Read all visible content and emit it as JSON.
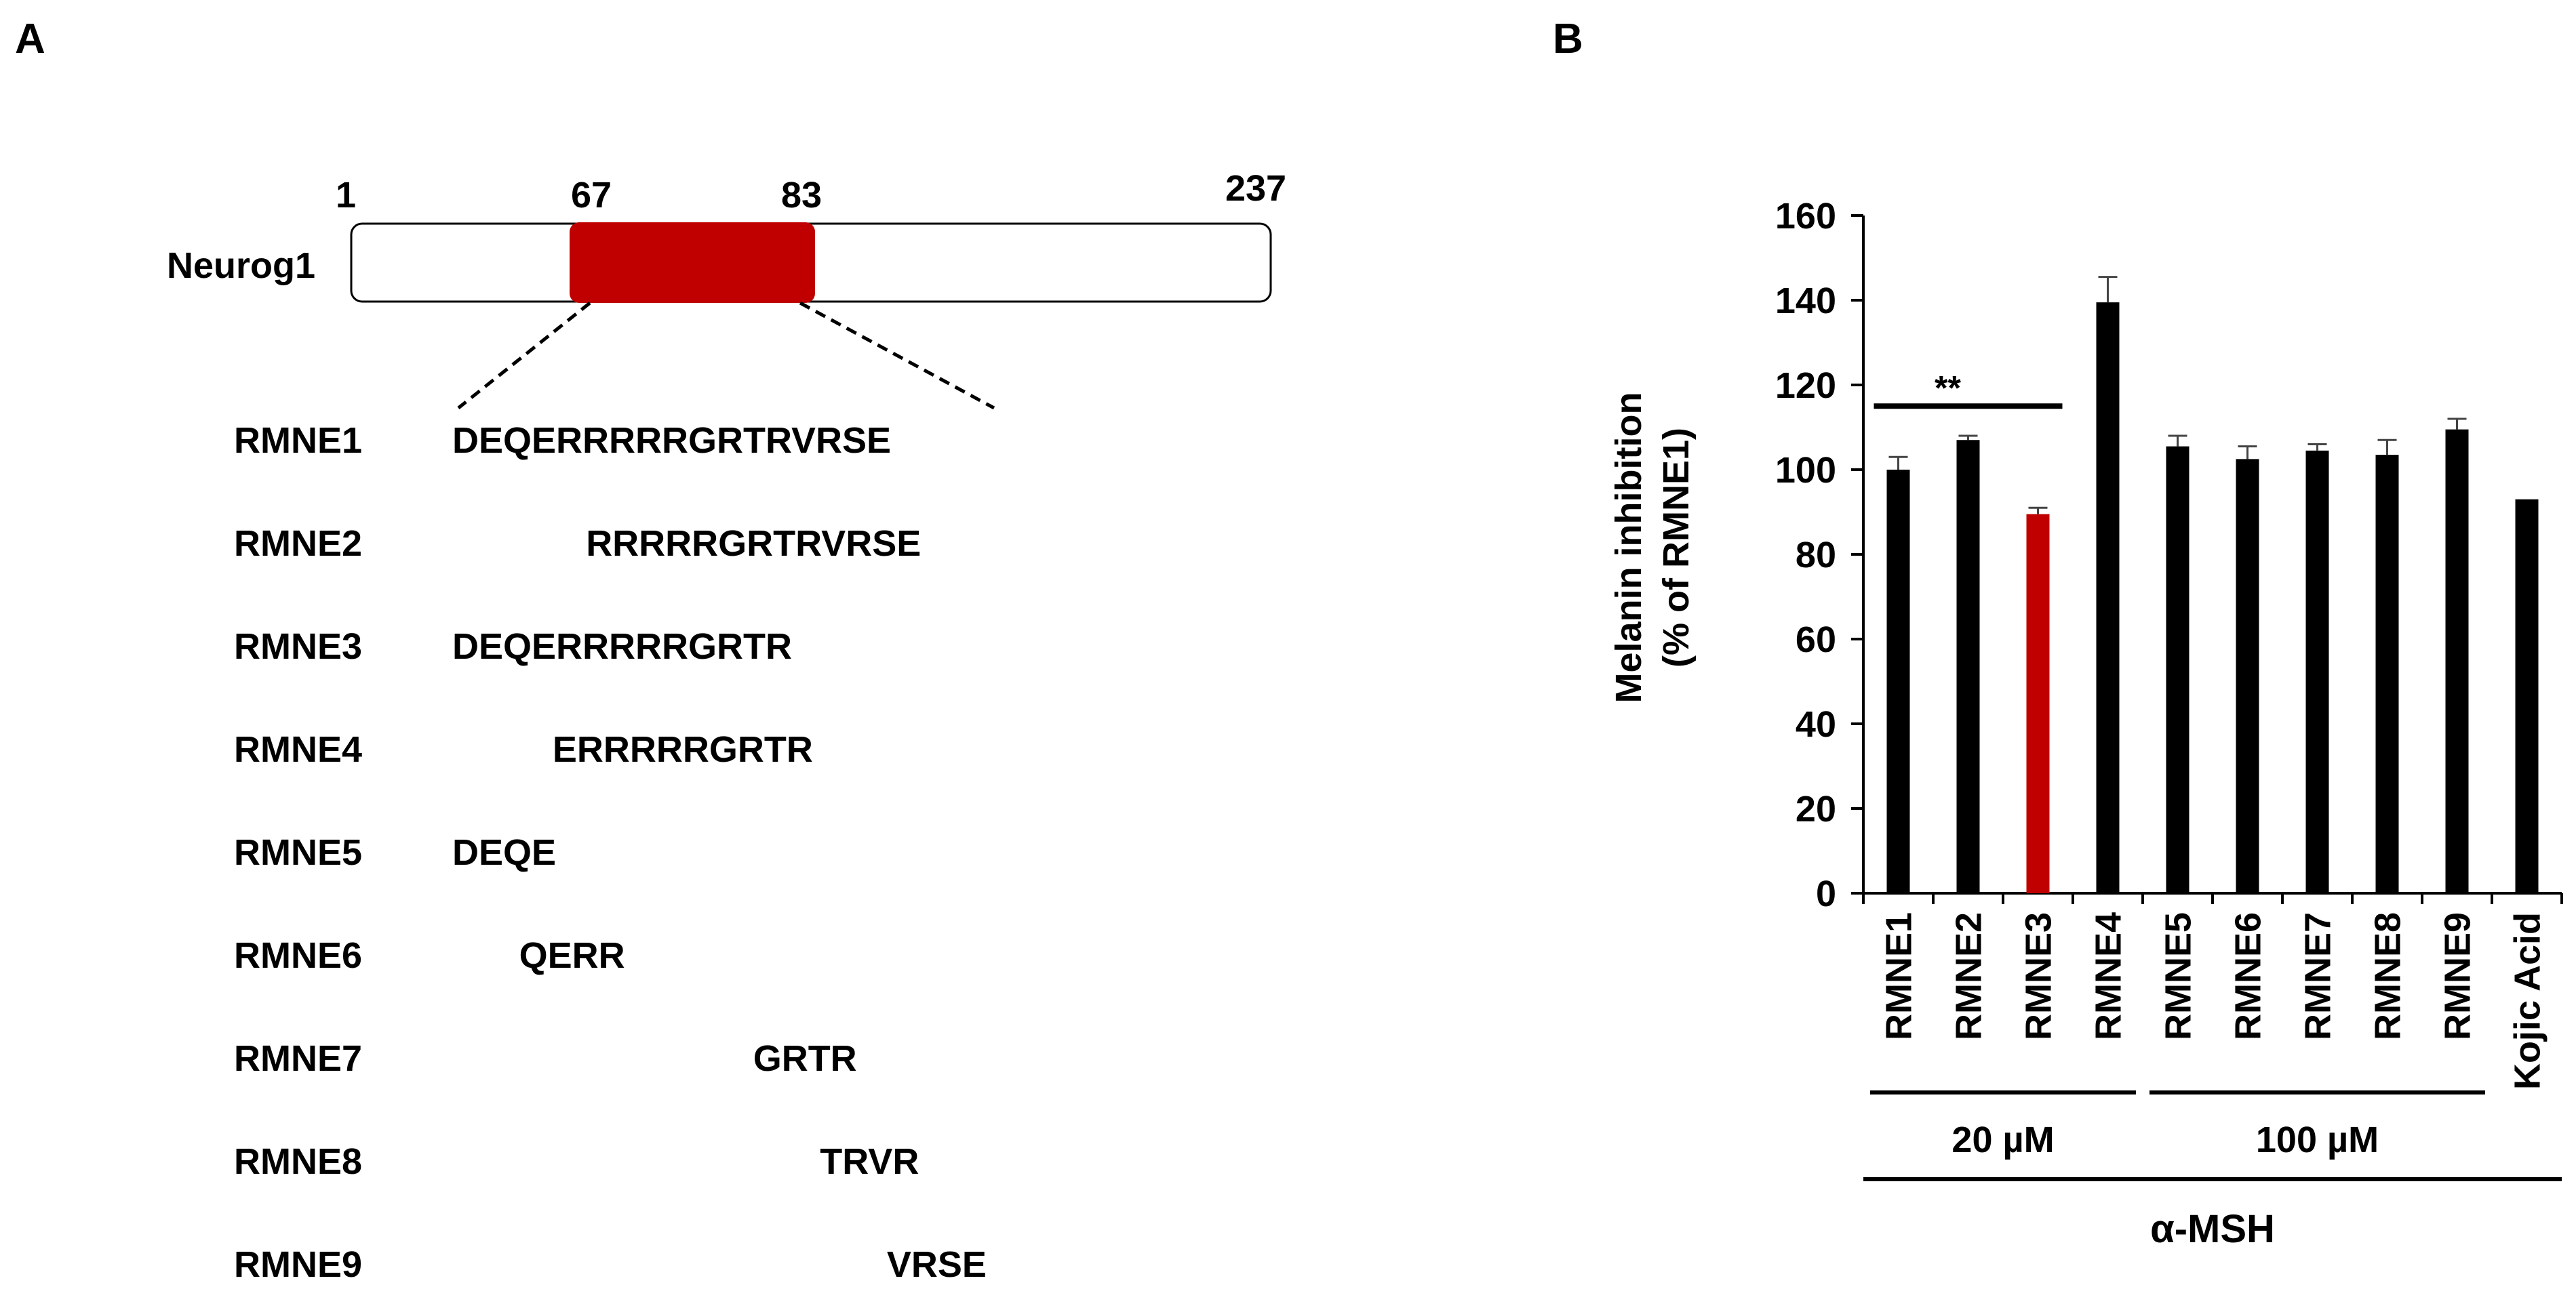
{
  "panel_a": {
    "label": "A",
    "protein_name": "Neurog1",
    "positions": [
      "1",
      "67",
      "83",
      "237"
    ],
    "domain_color": "#c00000",
    "peptides": [
      {
        "name": "RMNE1",
        "sequence": "DEQERRRRRGRTRVRSE",
        "start": 0,
        "highlight": false
      },
      {
        "name": "RMNE2",
        "sequence": "RRRRRGRTRVRSE",
        "start": 4,
        "highlight": false
      },
      {
        "name": "RMNE3",
        "sequence": "DEQERRRRRGRTR",
        "start": 0,
        "highlight": true
      },
      {
        "name": "RMNE4",
        "sequence": "ERRRRRGRTR",
        "start": 3,
        "highlight": false
      },
      {
        "name": "RMNE5",
        "sequence": "DEQE",
        "start": 0,
        "highlight": false
      },
      {
        "name": "RMNE6",
        "sequence": "QERR",
        "start": 2,
        "highlight": false
      },
      {
        "name": "RMNE7",
        "sequence": "GRTR",
        "start": 9,
        "highlight": false
      },
      {
        "name": "RMNE8",
        "sequence": "TRVR",
        "start": 11,
        "highlight": false
      },
      {
        "name": "RMNE9",
        "sequence": "VRSE",
        "start": 13,
        "highlight": false
      }
    ]
  },
  "panel_b": {
    "label": "B",
    "group_labels": [
      "20 µM",
      "100 µM"
    ],
    "treatment_label": "α-MSH",
    "significance": "**"
  },
  "chart_data": {
    "type": "bar",
    "title": "",
    "xlabel": "",
    "ylabel": [
      "Melanin inhibition",
      "(% of RMNE1)"
    ],
    "ylim": [
      0,
      160
    ],
    "yticks": [
      "0",
      "20",
      "40",
      "60",
      "80",
      "100",
      "120",
      "140",
      "160"
    ],
    "categories": [
      "RMNE1",
      "RMNE2",
      "RMNE3",
      "RMNE4",
      "RMNE5",
      "RMNE6",
      "RMNE7",
      "RMNE8",
      "RMNE9",
      "Kojic Acid"
    ],
    "values": [
      100,
      107,
      89.5,
      139.5,
      105.5,
      102.5,
      104.5,
      103.5,
      109.5,
      93
    ],
    "errors": [
      3,
      1,
      1.5,
      6,
      2.5,
      3,
      1.5,
      3.5,
      2.5,
      0
    ],
    "highlight_index": 2,
    "bar_color": "#000000",
    "highlight_color": "#c00000",
    "groups": [
      {
        "label": "20 µM",
        "from": 0,
        "to": 3
      },
      {
        "label": "100 µM",
        "from": 4,
        "to": 8
      }
    ],
    "significance": {
      "label": "**",
      "from": 0,
      "to": 2
    }
  }
}
